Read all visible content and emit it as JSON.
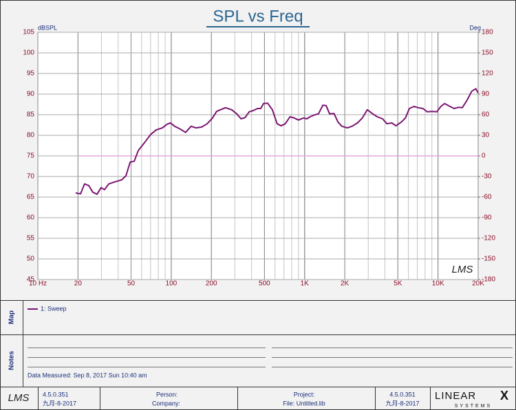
{
  "chart_data": {
    "type": "line",
    "title": "SPL vs Freq",
    "y_label": "dBSPL",
    "y2_label": "Deg",
    "watermark": "LMS",
    "xscale": "log",
    "xlim": [
      10,
      20000
    ],
    "ylim": [
      45,
      105
    ],
    "y2lim": [
      -180,
      180
    ],
    "grid": true,
    "xticks": [
      {
        "value": 10,
        "label": "10 Hz"
      },
      20,
      50,
      100,
      200,
      500,
      {
        "value": 1000,
        "label": "1K"
      },
      {
        "value": 2000,
        "label": "2K"
      },
      {
        "value": 5000,
        "label": "5K"
      },
      {
        "value": 10000,
        "label": "10K"
      },
      {
        "value": 20000,
        "label": "20K"
      }
    ],
    "yticks": [
      45,
      50,
      55,
      60,
      65,
      70,
      75,
      80,
      85,
      90,
      95,
      100,
      105
    ],
    "y2ticks": [
      -180,
      -150,
      -120,
      -90,
      -60,
      -30,
      0,
      30,
      60,
      90,
      120,
      150,
      180
    ],
    "x": [
      19.2,
      20.9,
      22.4,
      24.1,
      25.8,
      27.8,
      29.8,
      31.6,
      34,
      37.8,
      42.6,
      45.8,
      49.2,
      52.8,
      56.6,
      63,
      70.1,
      77.1,
      85.8,
      93.2,
      98.9,
      106,
      117,
      128,
      141,
      153,
      169,
      186,
      204,
      219,
      255,
      284,
      310,
      334,
      358,
      384,
      412,
      443,
      469,
      492,
      528,
      573,
      622,
      667,
      716,
      777,
      836,
      900,
      979,
      1040,
      1100,
      1200,
      1270,
      1370,
      1450,
      1540,
      1660,
      1780,
      1900,
      2090,
      2270,
      2490,
      2710,
      2950,
      3210,
      3500,
      3840,
      4140,
      4500,
      4840,
      5300,
      5700,
      6100,
      6600,
      7100,
      7700,
      8300,
      9000,
      9800,
      10500,
      11200,
      12300,
      13200,
      14300,
      15200,
      16500,
      17900,
      19200,
      20000
    ],
    "series": [
      {
        "name": "1: Sweep",
        "color": "#7a1470",
        "values": [
          66.0,
          65.8,
          68.2,
          67.8,
          66.2,
          65.7,
          67.3,
          66.8,
          68.2,
          68.7,
          69.2,
          70.2,
          73.5,
          73.7,
          76.3,
          78.2,
          80.2,
          81.3,
          81.8,
          82.7,
          83.0,
          82.2,
          81.5,
          80.7,
          82.2,
          81.8,
          82.0,
          82.8,
          84.2,
          85.8,
          86.7,
          86.2,
          85.2,
          84.0,
          84.3,
          85.7,
          86.0,
          86.5,
          86.5,
          87.7,
          87.8,
          86.2,
          82.8,
          82.3,
          82.8,
          84.5,
          84.2,
          83.7,
          84.2,
          84.0,
          84.5,
          85.0,
          85.2,
          87.3,
          87.2,
          85.2,
          85.3,
          83.2,
          82.2,
          81.8,
          82.2,
          83.0,
          84.2,
          86.2,
          85.3,
          84.5,
          84.0,
          82.8,
          83.0,
          82.3,
          83.2,
          84.2,
          86.5,
          87.0,
          86.7,
          86.5,
          85.7,
          85.8,
          85.7,
          87.0,
          87.7,
          87.0,
          86.5,
          86.8,
          86.7,
          88.5,
          90.7,
          91.3,
          90.3
        ]
      }
    ],
    "reference_line": {
      "axis": "y2",
      "color": "#e2a6dc",
      "x": [
        20,
        20000
      ],
      "values": [
        0,
        0
      ]
    }
  },
  "map_panel": {
    "label": "Map"
  },
  "notes_panel": {
    "label": "Notes",
    "data_measured": "Data Measured: Sep 8, 2017 Sun 10:40 am"
  },
  "footer": {
    "logo": "LMS",
    "version_left": "4.5.0.351",
    "date_left": "九月-8-2017",
    "person": "Person:",
    "company": "Company:",
    "project": "Project:",
    "file": "File: Untitled.lib",
    "version_right": "4.5.0.351",
    "date_right": "九月-8-2017",
    "brand_word": "LINEAR",
    "brand_mark": "X",
    "brand_sub": "SYSTEMS"
  }
}
